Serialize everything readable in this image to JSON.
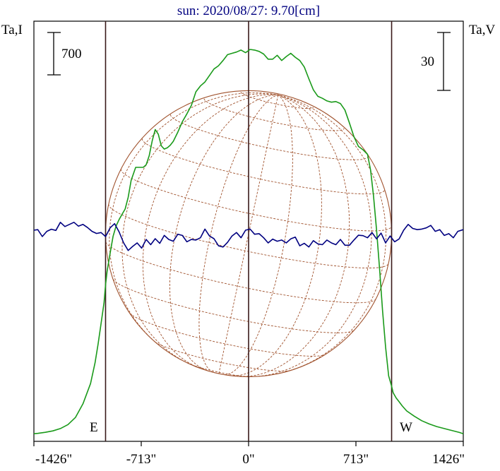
{
  "chart_data": {
    "type": "line",
    "title": "sun: 2020/08/27: 9.70[cm]",
    "left_axis_label": "Ta,I",
    "right_axis_label": "Ta,V",
    "left_scale_bar_label": "700",
    "right_scale_bar_label": "30",
    "east_marker": "E",
    "west_marker": "W",
    "x_tick_labels": [
      "-1426\"",
      "-713\"",
      "0\"",
      "713\"",
      "1426\""
    ],
    "x_ticks": [
      -1426,
      -713,
      0,
      713,
      1426
    ],
    "xlim": [
      -1426,
      1426
    ],
    "vertical_lines_x": [
      -950,
      0,
      950
    ],
    "colors": {
      "intensity": "#1a9a1a",
      "polarization": "#000080",
      "disk": "#a0522d",
      "frame": "#000000",
      "title": "#000080",
      "limb_lines": "#3a1a1a"
    },
    "series": [
      {
        "key": "intensity",
        "x": [
          -1426,
          -1400,
          -1350,
          -1300,
          -1250,
          -1200,
          -1150,
          -1100,
          -1050,
          -1020,
          -1000,
          -980,
          -960,
          -950,
          -940,
          -920,
          -900,
          -880,
          -860,
          -840,
          -820,
          -800,
          -780,
          -750,
          -720,
          -700,
          -680,
          -660,
          -640,
          -620,
          -600,
          -580,
          -560,
          -540,
          -520,
          -500,
          -470,
          -440,
          -410,
          -380,
          -350,
          -320,
          -290,
          -260,
          -230,
          -200,
          -170,
          -140,
          -110,
          -80,
          -50,
          -20,
          10,
          40,
          70,
          100,
          130,
          160,
          190,
          220,
          250,
          280,
          310,
          340,
          370,
          400,
          430,
          460,
          490,
          520,
          550,
          580,
          610,
          640,
          670,
          700,
          730,
          760,
          790,
          810,
          830,
          850,
          870,
          890,
          910,
          930,
          950,
          960,
          980,
          1000,
          1020,
          1050,
          1100,
          1150,
          1200,
          1250,
          1300,
          1350,
          1400,
          1426
        ],
        "y": [
          15,
          18,
          26,
          37,
          55,
          85,
          140,
          245,
          400,
          560,
          700,
          860,
          1020,
          1160,
          1260,
          1400,
          1530,
          1610,
          1660,
          1700,
          1740,
          1830,
          1960,
          2060,
          2060,
          2060,
          2080,
          2150,
          2265,
          2350,
          2315,
          2225,
          2200,
          2210,
          2230,
          2260,
          2330,
          2410,
          2470,
          2535,
          2640,
          2685,
          2715,
          2765,
          2815,
          2840,
          2880,
          2925,
          2935,
          2945,
          2960,
          2940,
          2965,
          2960,
          2950,
          2930,
          2890,
          2890,
          2920,
          2880,
          2910,
          2935,
          2905,
          2880,
          2830,
          2740,
          2655,
          2605,
          2590,
          2570,
          2560,
          2565,
          2550,
          2500,
          2400,
          2295,
          2220,
          2195,
          2160,
          2040,
          1840,
          1580,
          1280,
          960,
          680,
          460,
          380,
          330,
          290,
          260,
          230,
          190,
          150,
          115,
          90,
          70,
          55,
          40,
          25,
          15
        ]
      },
      {
        "key": "polarization",
        "x": [
          -1426,
          -1400,
          -1370,
          -1340,
          -1310,
          -1280,
          -1250,
          -1220,
          -1190,
          -1160,
          -1130,
          -1100,
          -1070,
          -1040,
          -1010,
          -980,
          -950,
          -920,
          -890,
          -860,
          -830,
          -800,
          -770,
          -740,
          -710,
          -680,
          -650,
          -620,
          -590,
          -560,
          -530,
          -500,
          -470,
          -440,
          -410,
          -380,
          -350,
          -320,
          -290,
          -260,
          -230,
          -200,
          -170,
          -140,
          -110,
          -80,
          -50,
          -20,
          10,
          40,
          70,
          100,
          130,
          160,
          190,
          220,
          250,
          280,
          310,
          340,
          370,
          400,
          430,
          460,
          490,
          520,
          550,
          580,
          610,
          640,
          670,
          700,
          730,
          760,
          790,
          820,
          850,
          880,
          910,
          940,
          970,
          1000,
          1030,
          1060,
          1090,
          1120,
          1150,
          1180,
          1210,
          1240,
          1270,
          1300,
          1330,
          1360,
          1390,
          1426
        ],
        "y": [
          0,
          0.3,
          -3.3,
          -0.6,
          0.5,
          -0.1,
          4.1,
          1.9,
          3.0,
          4.1,
          2.1,
          3.0,
          1.4,
          -0.6,
          -1.7,
          -1.2,
          -3.3,
          1.2,
          3.4,
          -0.9,
          -6.6,
          -10.5,
          -8.4,
          -6.6,
          -9.3,
          -4.8,
          -7.5,
          -4.4,
          -6.8,
          -2.7,
          -4.8,
          -5.7,
          -2.1,
          -2.7,
          -6.0,
          -4.8,
          -5.1,
          -3.9,
          0.6,
          -3.0,
          -4.4,
          -8.1,
          -8.7,
          -6.3,
          -3.0,
          -1.2,
          -3.9,
          0,
          0.6,
          -2.1,
          -1.8,
          -3.9,
          -6.6,
          -4.6,
          -5.7,
          -5.1,
          -6.6,
          -4.5,
          -3.6,
          -8.1,
          -6.8,
          -8.7,
          -5.4,
          -7.1,
          -7.5,
          -5.1,
          -6.6,
          -7.5,
          -4.8,
          -7.8,
          -7.8,
          -5.1,
          -2.6,
          -2.8,
          -3.9,
          -1.2,
          -4.5,
          -1.5,
          -6.6,
          -3.0,
          -6.0,
          -4.5,
          0,
          3.0,
          0.9,
          0.3,
          0.6,
          1.2,
          2.5,
          -0.6,
          0.3,
          -2.7,
          -1.8,
          -3.9,
          -0.6,
          0.3
        ]
      }
    ]
  }
}
